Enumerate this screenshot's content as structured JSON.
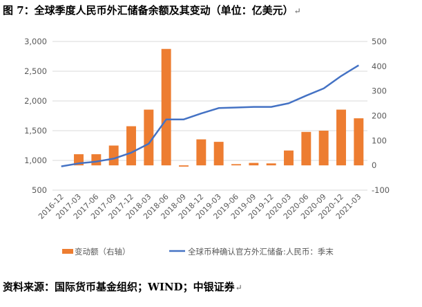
{
  "title": "图 7：全球季度人民币外汇储备余额及其变动（单位：亿美元）",
  "source": "资料来源：国际货币基金组织；WIND；中银证券",
  "paragraph_mark": "↵",
  "chart_data": {
    "type": "bar+line",
    "categories": [
      "2016-12",
      "2017-03",
      "2017-06",
      "2017-09",
      "2017-12",
      "2018-03",
      "2018-06",
      "2018-09",
      "2018-12",
      "2019-03",
      "2019-06",
      "2019-09",
      "2019-12",
      "2020-03",
      "2020-06",
      "2020-09",
      "2020-12",
      "2021-03"
    ],
    "series": [
      {
        "name": "变动额（右轴）",
        "type": "bar",
        "axis": "right",
        "color": "#ED7D31",
        "values": [
          0,
          45,
          45,
          80,
          158,
          225,
          470,
          -5,
          105,
          95,
          5,
          10,
          8,
          60,
          135,
          140,
          225,
          190
        ]
      },
      {
        "name": "全球币种确认官方外汇储备:人民币：季末",
        "type": "line",
        "axis": "left",
        "color": "#4472C4",
        "values": [
          900,
          950,
          980,
          1030,
          1130,
          1280,
          1690,
          1690,
          1790,
          1880,
          1890,
          1900,
          1900,
          1960,
          2090,
          2210,
          2420,
          2600
        ]
      }
    ],
    "left_axis": {
      "min": 500,
      "max": 3000,
      "ticks": [
        "500",
        "1,000",
        "1,500",
        "2,000",
        "2,500",
        "3,000"
      ]
    },
    "right_axis": {
      "min": -100,
      "max": 500,
      "ticks": [
        "-100",
        "0",
        "100",
        "200",
        "300",
        "400",
        "500"
      ]
    },
    "grid": true,
    "legend_position": "bottom"
  }
}
